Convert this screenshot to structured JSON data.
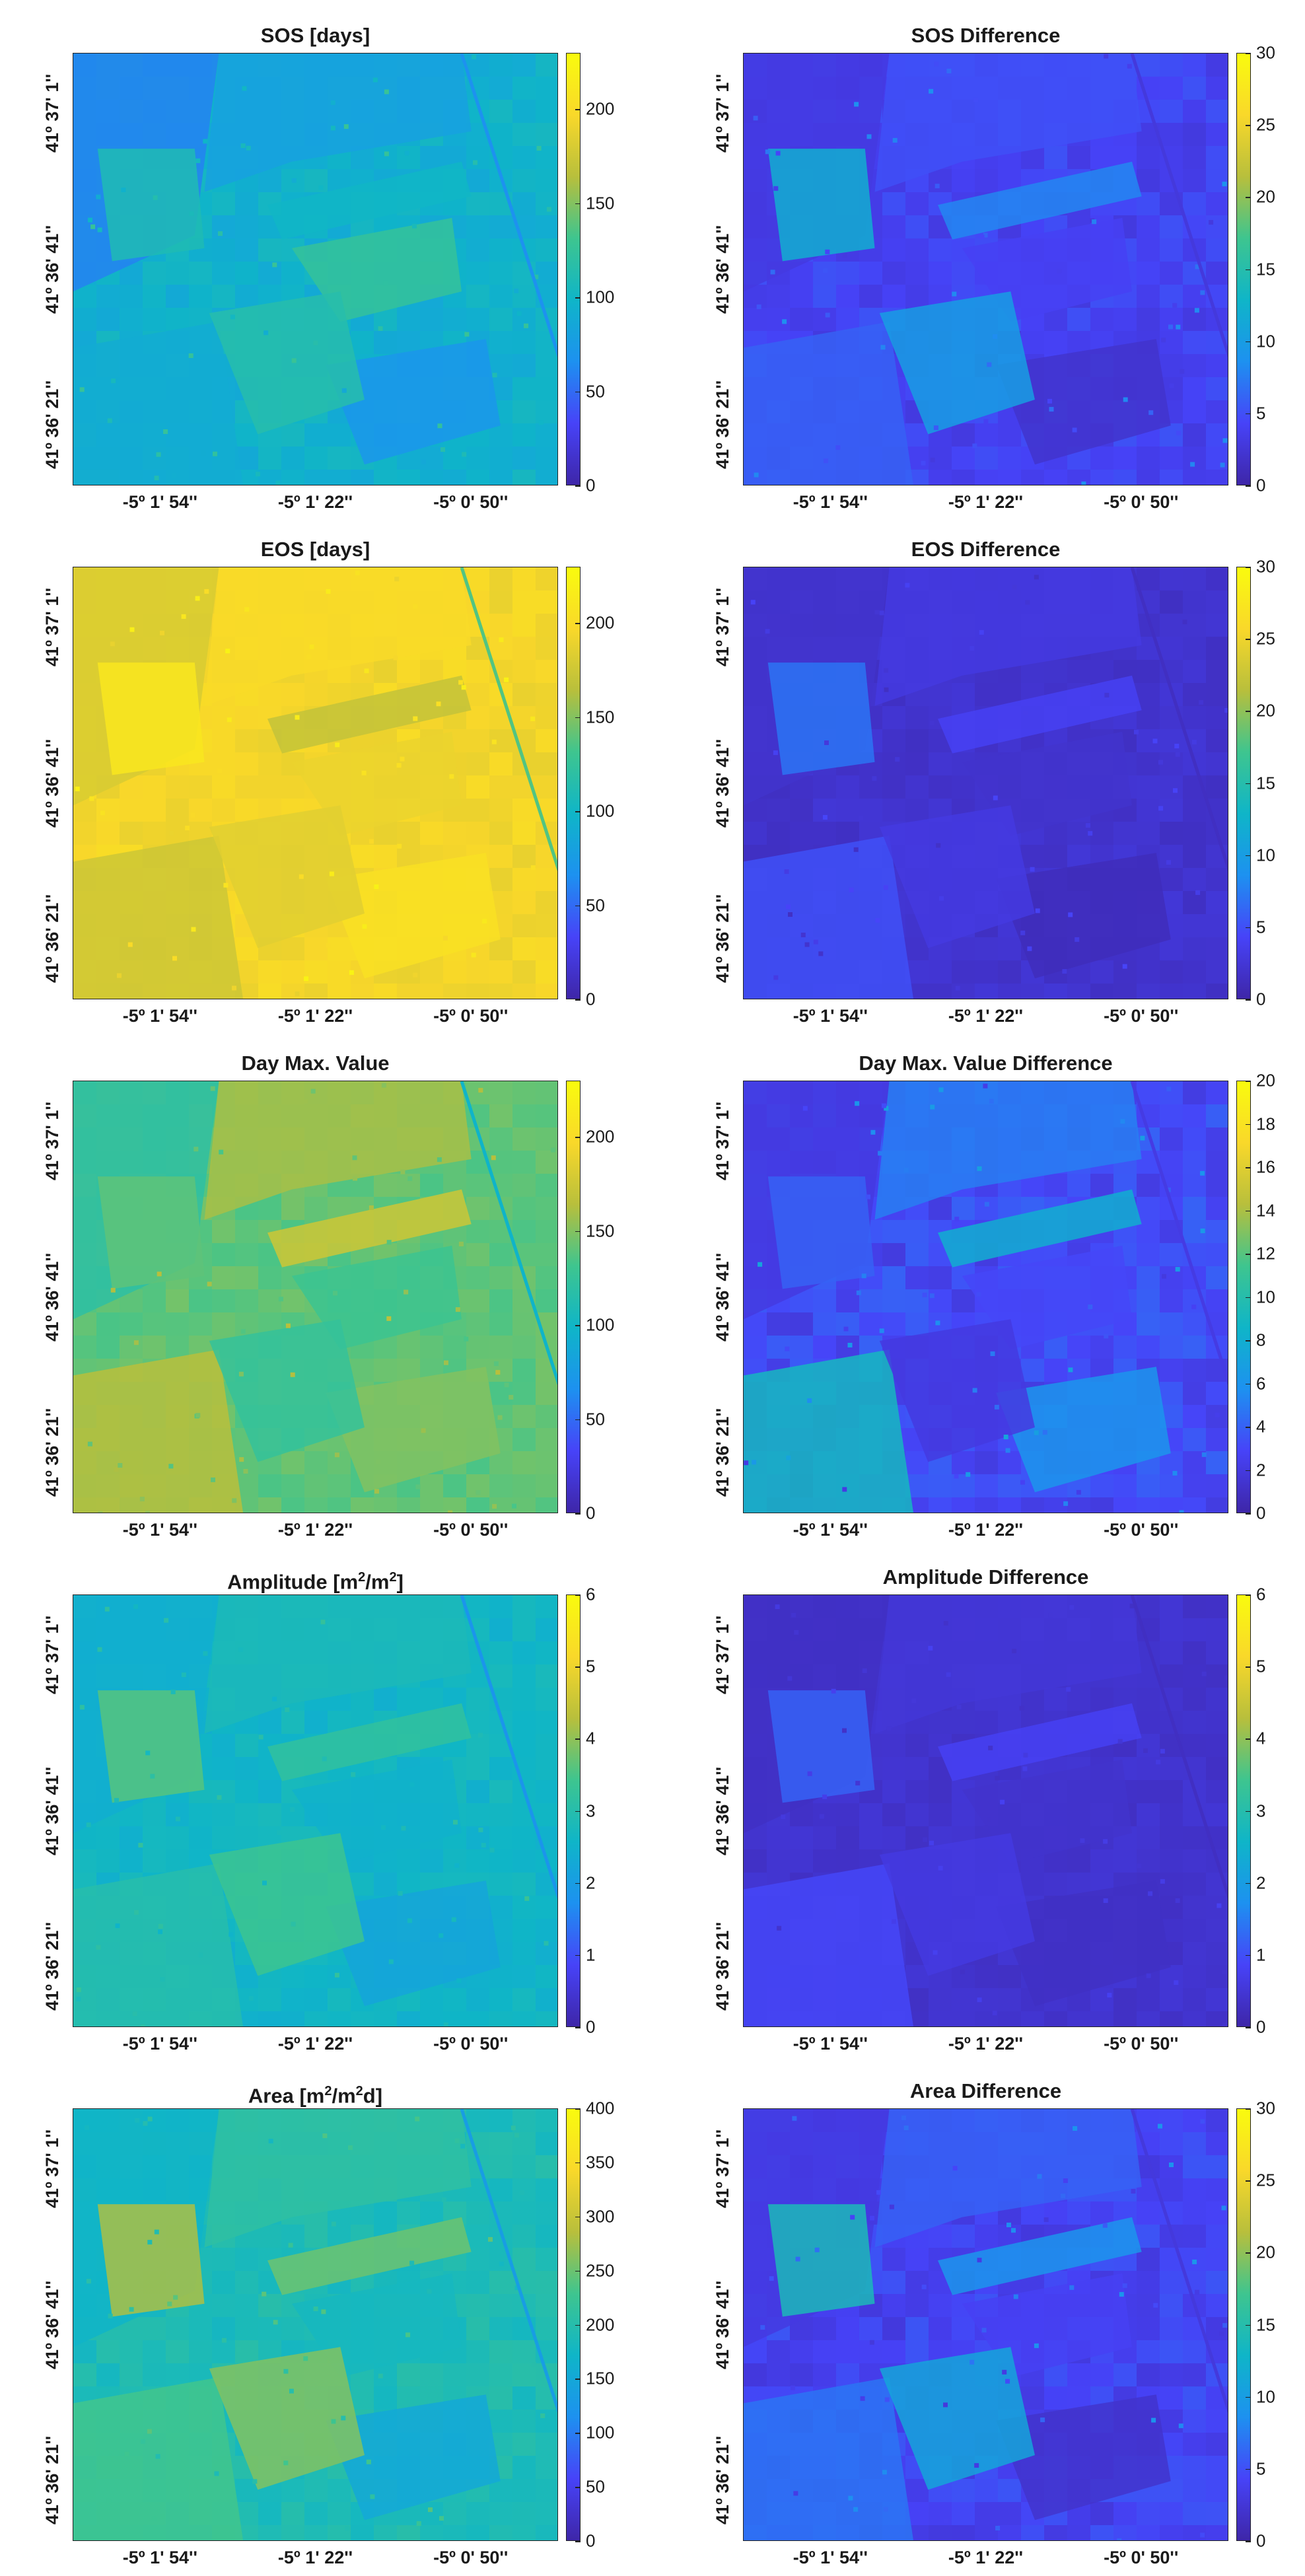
{
  "ytick_labels": [
    "41º 37' 1''",
    "41º 36' 41''",
    "41º 36' 21''"
  ],
  "xtick_labels": [
    "-5º 1' 54''",
    "-5º 1' 22''",
    "-5º 0' 50''"
  ],
  "colormap": [
    "#3e26a8",
    "#4743f8",
    "#1d91f0",
    "#0fb5c8",
    "#3ec58f",
    "#b8bf3c",
    "#f9d82a",
    "#f9fb0e"
  ],
  "chart_data": [
    {
      "type": "heatmap",
      "title": "SOS [days]",
      "title_sup": [],
      "clim": [
        0,
        230
      ],
      "colorbar_ticks": [
        0,
        50,
        100,
        150,
        200
      ],
      "base_level": 95,
      "field_levels": [
        60,
        80,
        100,
        110,
        125,
        90,
        70,
        115
      ],
      "variation": 0.15
    },
    {
      "type": "heatmap",
      "title": "SOS Difference",
      "title_sup": [],
      "clim": [
        0,
        30
      ],
      "colorbar_ticks": [
        0,
        5,
        10,
        15,
        20,
        25,
        30
      ],
      "base_level": 4,
      "field_levels": [
        3,
        5,
        8,
        12,
        4,
        6,
        2,
        10
      ],
      "variation": 0.5
    },
    {
      "type": "heatmap",
      "title": "EOS [days]",
      "title_sup": [],
      "clim": [
        0,
        230
      ],
      "colorbar_ticks": [
        0,
        50,
        100,
        150,
        200
      ],
      "base_level": 195,
      "field_levels": [
        180,
        200,
        170,
        210,
        190,
        175,
        205,
        185
      ],
      "variation": 0.06
    },
    {
      "type": "heatmap",
      "title": "EOS Difference",
      "title_sup": [],
      "clim": [
        0,
        30
      ],
      "colorbar_ticks": [
        0,
        5,
        10,
        15,
        20,
        25,
        30
      ],
      "base_level": 2,
      "field_levels": [
        2,
        3,
        4,
        7,
        2,
        5,
        1,
        3
      ],
      "variation": 0.5
    },
    {
      "type": "heatmap",
      "title": "Day Max. Value",
      "title_sup": [],
      "clim": [
        0,
        230
      ],
      "colorbar_ticks": [
        0,
        50,
        100,
        150,
        200
      ],
      "base_level": 140,
      "field_levels": [
        120,
        160,
        175,
        140,
        130,
        165,
        150,
        125
      ],
      "variation": 0.08
    },
    {
      "type": "heatmap",
      "title": "Day Max. Value Difference",
      "title_sup": [],
      "clim": [
        0,
        20
      ],
      "colorbar_ticks": [
        0,
        2,
        4,
        6,
        8,
        10,
        12,
        14,
        16,
        18,
        20
      ],
      "base_level": 3,
      "field_levels": [
        2,
        5,
        8,
        4,
        3,
        9,
        6,
        2
      ],
      "variation": 0.6
    },
    {
      "type": "heatmap",
      "title": "Amplitude [m",
      "title_sup": [
        "2",
        "/m",
        "2",
        "]"
      ],
      "clim": [
        0,
        6
      ],
      "colorbar_ticks": [
        0,
        1,
        2,
        3,
        4,
        5,
        6
      ],
      "base_level": 2.6,
      "field_levels": [
        2.4,
        2.8,
        3.2,
        3.6,
        2.5,
        3.0,
        2.2,
        3.4
      ],
      "variation": 0.12
    },
    {
      "type": "heatmap",
      "title": "Amplitude Difference",
      "title_sup": [],
      "clim": [
        0,
        6
      ],
      "colorbar_ticks": [
        0,
        1,
        2,
        3,
        4,
        5,
        6
      ],
      "base_level": 0.4,
      "field_levels": [
        0.3,
        0.5,
        0.8,
        1.2,
        0.4,
        0.9,
        0.3,
        0.6
      ],
      "variation": 0.4
    },
    {
      "type": "heatmap",
      "title": "Area  [m",
      "title_sup": [
        "2",
        "/m",
        "2",
        "d]"
      ],
      "clim": [
        0,
        400
      ],
      "colorbar_ticks": [
        0,
        50,
        100,
        150,
        200,
        250,
        300,
        350,
        400
      ],
      "base_level": 190,
      "field_levels": [
        170,
        210,
        250,
        280,
        180,
        230,
        150,
        260
      ],
      "variation": 0.12
    },
    {
      "type": "heatmap",
      "title": "Area Difference",
      "title_sup": [],
      "clim": [
        0,
        30
      ],
      "colorbar_ticks": [
        0,
        5,
        10,
        15,
        20,
        25,
        30
      ],
      "base_level": 4,
      "field_levels": [
        3,
        6,
        9,
        14,
        4,
        7,
        2,
        11
      ],
      "variation": 0.55
    }
  ]
}
